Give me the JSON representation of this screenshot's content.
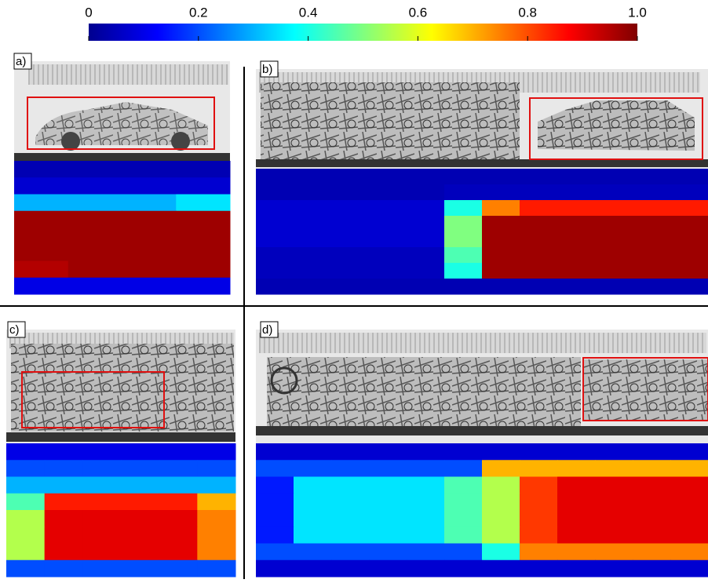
{
  "colorbar": {
    "lim": [
      0,
      1
    ],
    "ticks": [
      0,
      0.2,
      0.4,
      0.6,
      0.8,
      {
        "value": 1,
        "label": "1.0"
      }
    ]
  },
  "panels": [
    {
      "label": "a)",
      "heatmap": [
        [
          0.05,
          0.05,
          0.05,
          0.05
        ],
        [
          0.08,
          0.08,
          0.08,
          0.08
        ],
        [
          0.3,
          0.3,
          0.3,
          0.35
        ],
        [
          0.97,
          0.97,
          0.97,
          0.97
        ],
        [
          0.97,
          0.97,
          0.97,
          0.97
        ],
        [
          0.97,
          0.97,
          0.97,
          0.97
        ],
        [
          0.95,
          0.97,
          0.97,
          0.97
        ],
        [
          0.1,
          0.1,
          0.1,
          0.1
        ]
      ]
    },
    {
      "label": "b)",
      "heatmap": [
        [
          0.05,
          0.05,
          0.05,
          0.05,
          0.05,
          0.05,
          0.05,
          0.05,
          0.05,
          0.05,
          0.05,
          0.05
        ],
        [
          0.05,
          0.05,
          0.05,
          0.05,
          0.05,
          0.06,
          0.06,
          0.06,
          0.06,
          0.06,
          0.06,
          0.06
        ],
        [
          0.08,
          0.08,
          0.08,
          0.08,
          0.08,
          0.4,
          0.75,
          0.85,
          0.85,
          0.85,
          0.85,
          0.85
        ],
        [
          0.08,
          0.08,
          0.08,
          0.08,
          0.08,
          0.5,
          0.97,
          0.97,
          0.97,
          0.97,
          0.97,
          0.97
        ],
        [
          0.08,
          0.08,
          0.08,
          0.08,
          0.08,
          0.5,
          0.97,
          0.97,
          0.97,
          0.97,
          0.97,
          0.97
        ],
        [
          0.06,
          0.06,
          0.06,
          0.06,
          0.06,
          0.45,
          0.97,
          0.97,
          0.97,
          0.97,
          0.97,
          0.97
        ],
        [
          0.06,
          0.06,
          0.06,
          0.06,
          0.06,
          0.4,
          0.97,
          0.97,
          0.97,
          0.97,
          0.97,
          0.97
        ],
        [
          0.05,
          0.05,
          0.05,
          0.05,
          0.05,
          0.05,
          0.05,
          0.05,
          0.05,
          0.05,
          0.05,
          0.05
        ]
      ]
    },
    {
      "label": "c)",
      "heatmap": [
        [
          0.1,
          0.1,
          0.1,
          0.1,
          0.1,
          0.1
        ],
        [
          0.2,
          0.2,
          0.2,
          0.2,
          0.2,
          0.2
        ],
        [
          0.3,
          0.3,
          0.3,
          0.3,
          0.3,
          0.3
        ],
        [
          0.45,
          0.85,
          0.85,
          0.85,
          0.85,
          0.7
        ],
        [
          0.55,
          0.9,
          0.9,
          0.9,
          0.9,
          0.75
        ],
        [
          0.55,
          0.9,
          0.9,
          0.9,
          0.9,
          0.75
        ],
        [
          0.55,
          0.9,
          0.9,
          0.9,
          0.9,
          0.75
        ],
        [
          0.2,
          0.2,
          0.2,
          0.2,
          0.2,
          0.2
        ]
      ]
    },
    {
      "label": "d)",
      "heatmap": [
        [
          0.08,
          0.08,
          0.08,
          0.08,
          0.08,
          0.08,
          0.08,
          0.08,
          0.08,
          0.08,
          0.08,
          0.08
        ],
        [
          0.2,
          0.2,
          0.2,
          0.2,
          0.2,
          0.2,
          0.7,
          0.7,
          0.7,
          0.7,
          0.7,
          0.7
        ],
        [
          0.15,
          0.35,
          0.35,
          0.35,
          0.35,
          0.45,
          0.55,
          0.82,
          0.9,
          0.9,
          0.9,
          0.9
        ],
        [
          0.15,
          0.35,
          0.35,
          0.35,
          0.35,
          0.45,
          0.55,
          0.82,
          0.9,
          0.9,
          0.9,
          0.9
        ],
        [
          0.15,
          0.35,
          0.35,
          0.35,
          0.35,
          0.45,
          0.55,
          0.82,
          0.9,
          0.9,
          0.9,
          0.9
        ],
        [
          0.15,
          0.35,
          0.35,
          0.35,
          0.35,
          0.45,
          0.55,
          0.82,
          0.9,
          0.9,
          0.9,
          0.9
        ],
        [
          0.2,
          0.2,
          0.2,
          0.2,
          0.2,
          0.2,
          0.4,
          0.75,
          0.75,
          0.75,
          0.75,
          0.75
        ],
        [
          0.08,
          0.08,
          0.08,
          0.08,
          0.08,
          0.08,
          0.08,
          0.08,
          0.08,
          0.08,
          0.08,
          0.08
        ]
      ]
    }
  ]
}
